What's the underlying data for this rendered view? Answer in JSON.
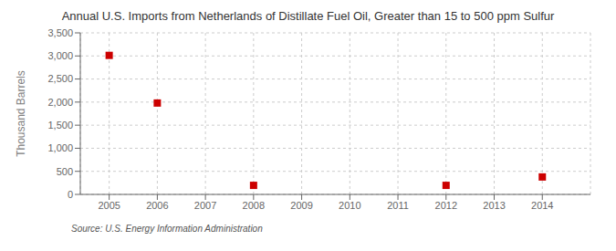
{
  "chart_data": {
    "type": "scatter",
    "title": "Annual U.S. Imports from Netherlands of Distillate Fuel Oil, Greater than 15 to 500 ppm Sulfur",
    "ylabel": "Thousand Barrels",
    "annotations": [
      "Source: U.S. Energy Information Administration"
    ],
    "x": [
      2005,
      2006,
      2008,
      2012,
      2014
    ],
    "values": [
      3012,
      1980,
      196,
      196,
      378
    ],
    "color": "#cc0000",
    "marker": "square",
    "xlim": [
      2004.4,
      2015.0
    ],
    "xticks": [
      2005,
      2006,
      2007,
      2008,
      2009,
      2010,
      2011,
      2012,
      2013,
      2014
    ],
    "ylim": [
      0,
      3500
    ],
    "yticks": [
      0,
      500,
      {
        "value": 1000,
        "label": "1,000"
      },
      {
        "value": 1500,
        "label": "1,500"
      },
      {
        "value": 2000,
        "label": "2,000"
      },
      {
        "value": 2500,
        "label": "2,500"
      },
      {
        "value": 3000,
        "label": "3,000"
      },
      {
        "value": 3500,
        "label": "3,500"
      }
    ],
    "grid": true
  }
}
